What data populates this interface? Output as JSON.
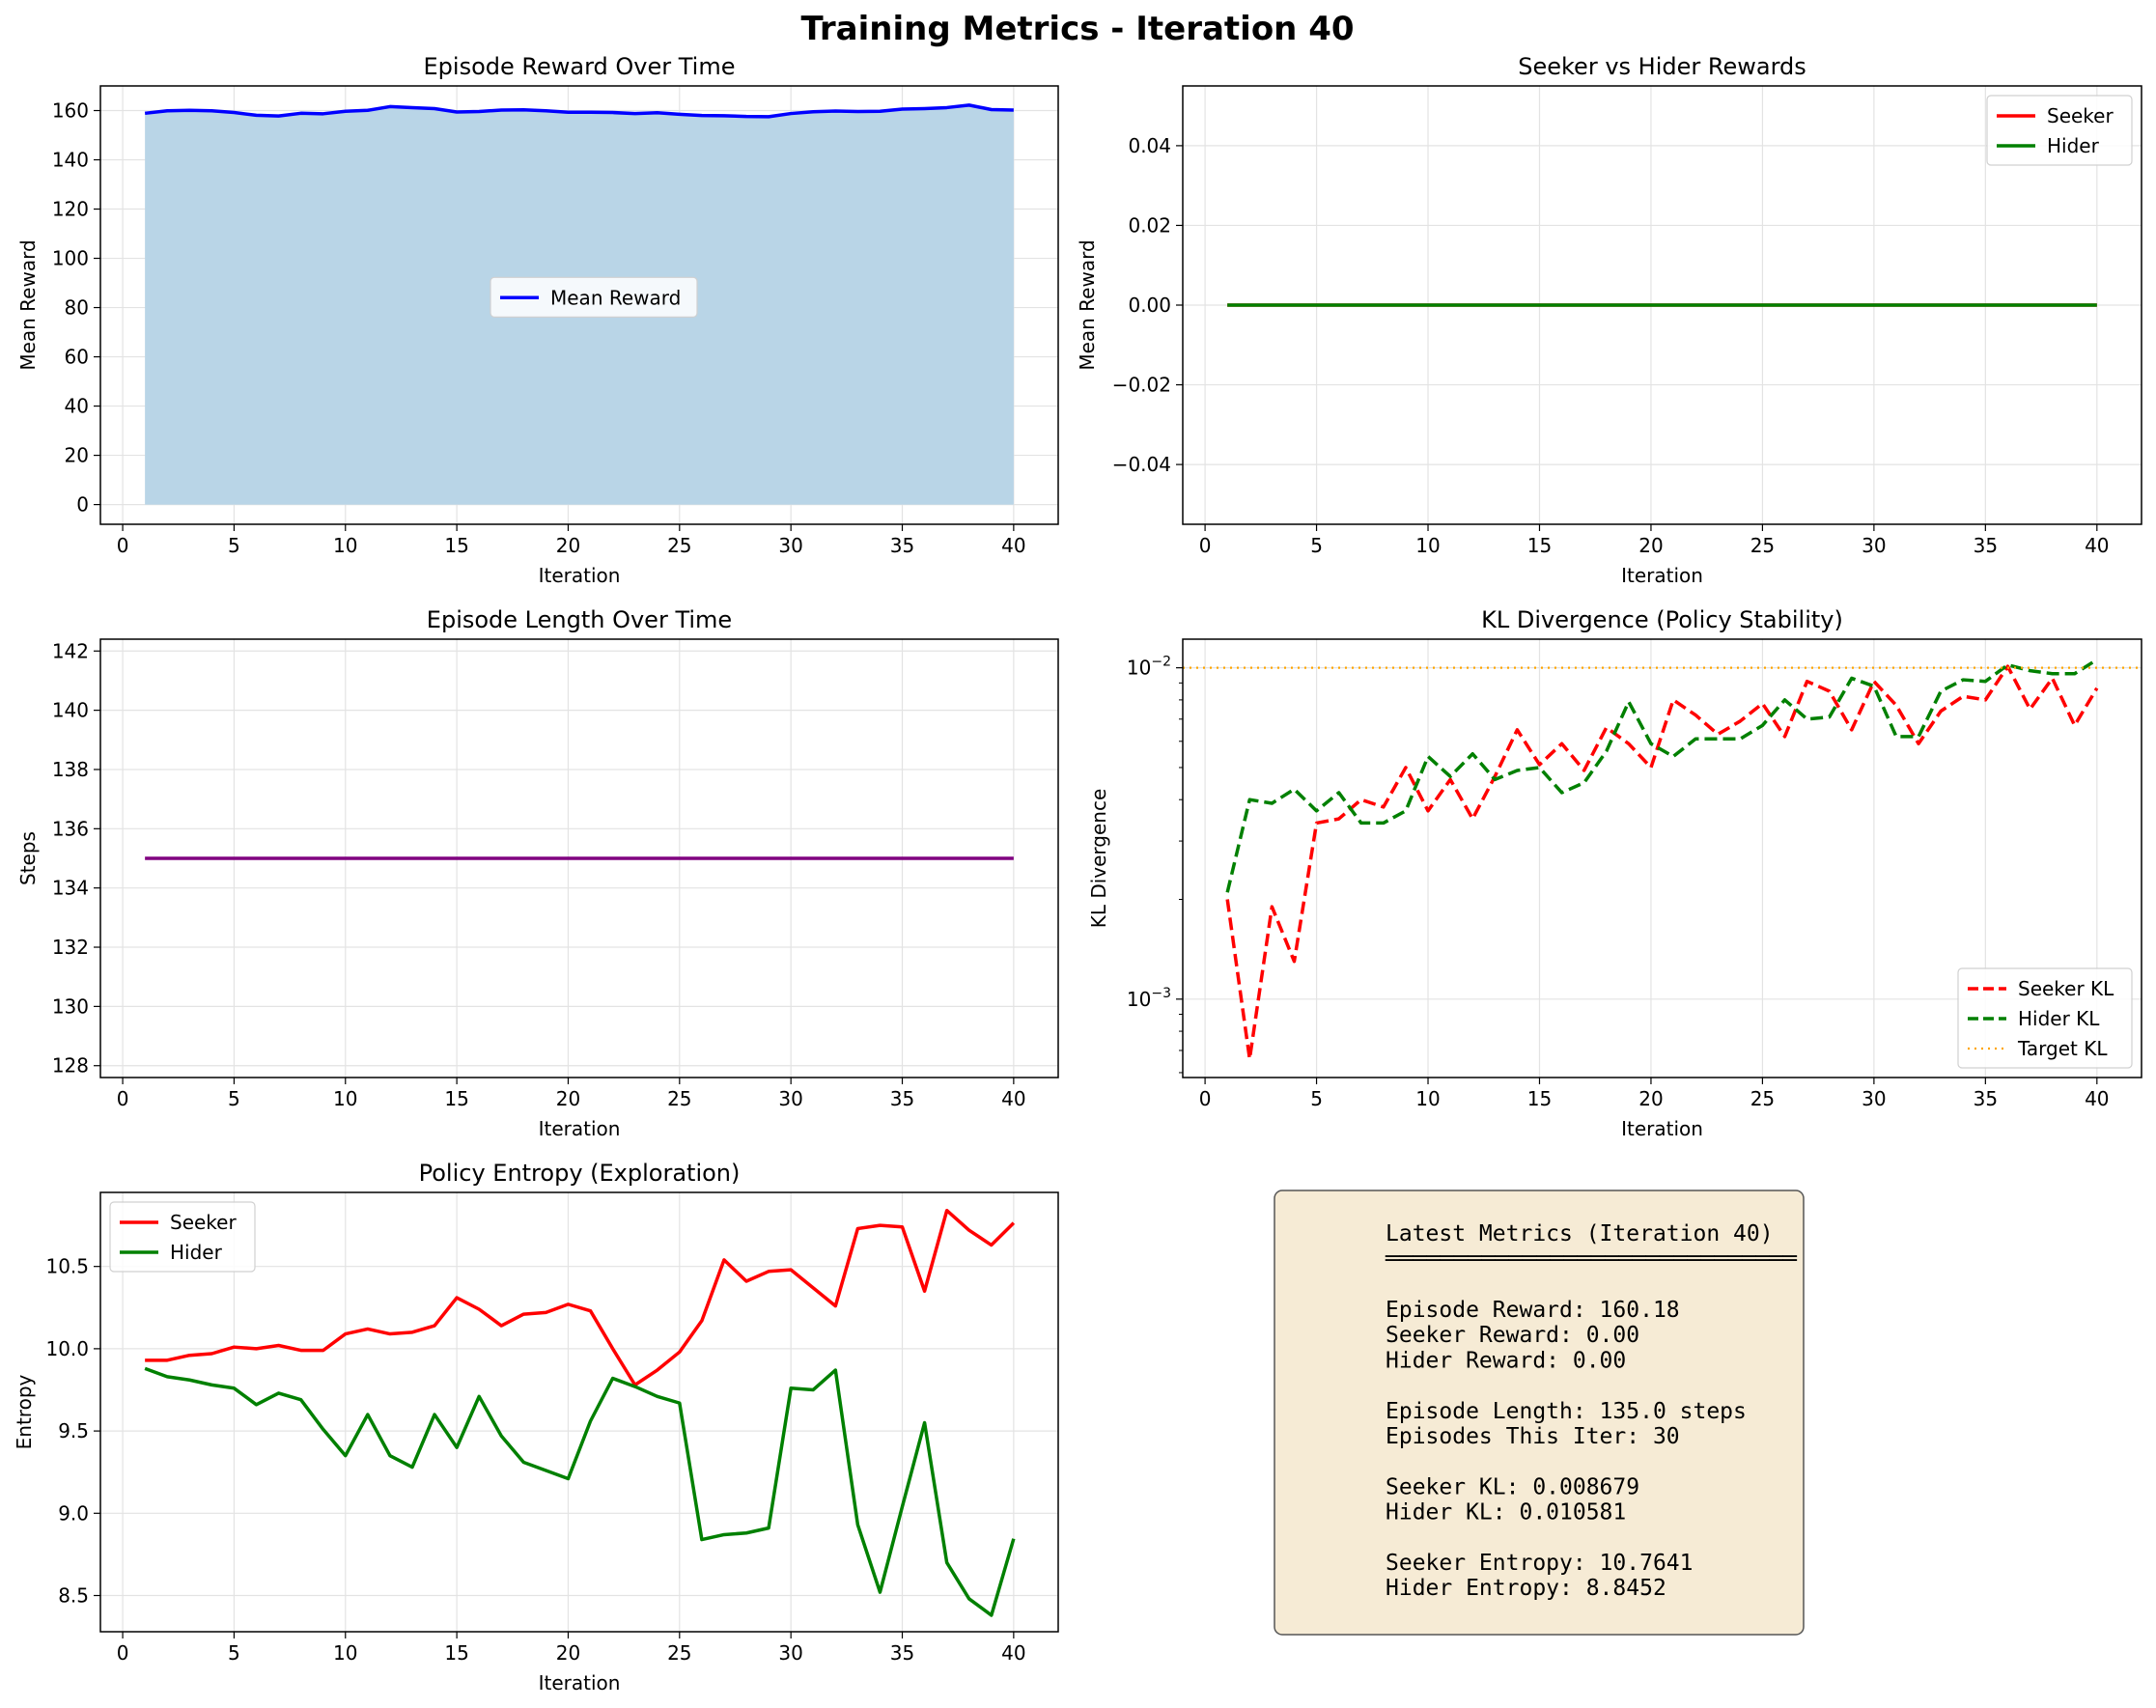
{
  "figure": {
    "title": "Training Metrics - Iteration 40"
  },
  "chart_data": [
    {
      "type": "area",
      "title": "Episode Reward Over Time",
      "xlabel": "Iteration",
      "ylabel": "Mean Reward",
      "xlim": [
        -1,
        42
      ],
      "ylim": [
        -8,
        170
      ],
      "xticks": [
        0,
        5,
        10,
        15,
        20,
        25,
        30,
        35,
        40
      ],
      "yticks": [
        0,
        20,
        40,
        60,
        80,
        100,
        120,
        140,
        160
      ],
      "legend_position": "center",
      "grid": true,
      "x": [
        1,
        2,
        3,
        4,
        5,
        6,
        7,
        8,
        9,
        10,
        11,
        12,
        13,
        14,
        15,
        16,
        17,
        18,
        19,
        20,
        21,
        22,
        23,
        24,
        25,
        26,
        27,
        28,
        29,
        30,
        31,
        32,
        33,
        34,
        35,
        36,
        37,
        38,
        39,
        40
      ],
      "series": [
        {
          "name": "Mean Reward",
          "color": "#0000ff",
          "fill": "#b9d5e7",
          "values": [
            158.9,
            159.9,
            160.1,
            159.9,
            159.2,
            158.1,
            157.8,
            158.9,
            158.7,
            159.7,
            160.1,
            161.6,
            161.2,
            160.8,
            159.4,
            159.6,
            160.2,
            160.3,
            159.9,
            159.3,
            159.3,
            159.2,
            158.8,
            159.1,
            158.5,
            158.0,
            157.9,
            157.6,
            157.5,
            158.8,
            159.5,
            159.8,
            159.6,
            159.7,
            160.6,
            160.8,
            161.2,
            162.2,
            160.4,
            160.18
          ]
        }
      ]
    },
    {
      "type": "line",
      "title": "Seeker vs Hider Rewards",
      "xlabel": "Iteration",
      "ylabel": "Mean Reward",
      "xlim": [
        -1,
        42
      ],
      "ylim": [
        -0.055,
        0.055
      ],
      "xticks": [
        0,
        5,
        10,
        15,
        20,
        25,
        30,
        35,
        40
      ],
      "yticks": [
        -0.04,
        -0.02,
        0.0,
        0.02,
        0.04
      ],
      "ytick_labels": [
        "−0.04",
        "−0.02",
        "0.00",
        "0.02",
        "0.04"
      ],
      "legend_position": "top-right",
      "grid": true,
      "x": [
        1,
        2,
        3,
        4,
        5,
        6,
        7,
        8,
        9,
        10,
        11,
        12,
        13,
        14,
        15,
        16,
        17,
        18,
        19,
        20,
        21,
        22,
        23,
        24,
        25,
        26,
        27,
        28,
        29,
        30,
        31,
        32,
        33,
        34,
        35,
        36,
        37,
        38,
        39,
        40
      ],
      "series": [
        {
          "name": "Seeker",
          "color": "#ff0000",
          "values": [
            0,
            0,
            0,
            0,
            0,
            0,
            0,
            0,
            0,
            0,
            0,
            0,
            0,
            0,
            0,
            0,
            0,
            0,
            0,
            0,
            0,
            0,
            0,
            0,
            0,
            0,
            0,
            0,
            0,
            0,
            0,
            0,
            0,
            0,
            0,
            0,
            0,
            0,
            0,
            0
          ]
        },
        {
          "name": "Hider",
          "color": "#008000",
          "values": [
            0,
            0,
            0,
            0,
            0,
            0,
            0,
            0,
            0,
            0,
            0,
            0,
            0,
            0,
            0,
            0,
            0,
            0,
            0,
            0,
            0,
            0,
            0,
            0,
            0,
            0,
            0,
            0,
            0,
            0,
            0,
            0,
            0,
            0,
            0,
            0,
            0,
            0,
            0,
            0
          ]
        }
      ]
    },
    {
      "type": "line",
      "title": "Episode Length Over Time",
      "xlabel": "Iteration",
      "ylabel": "Steps",
      "xlim": [
        -1,
        42
      ],
      "ylim": [
        127.6,
        142.4
      ],
      "xticks": [
        0,
        5,
        10,
        15,
        20,
        25,
        30,
        35,
        40
      ],
      "yticks": [
        128,
        130,
        132,
        134,
        136,
        138,
        140,
        142
      ],
      "legend_position": "none",
      "grid": true,
      "x": [
        1,
        2,
        3,
        4,
        5,
        6,
        7,
        8,
        9,
        10,
        11,
        12,
        13,
        14,
        15,
        16,
        17,
        18,
        19,
        20,
        21,
        22,
        23,
        24,
        25,
        26,
        27,
        28,
        29,
        30,
        31,
        32,
        33,
        34,
        35,
        36,
        37,
        38,
        39,
        40
      ],
      "series": [
        {
          "name": "Episode Length",
          "color": "#800080",
          "values": [
            135,
            135,
            135,
            135,
            135,
            135,
            135,
            135,
            135,
            135,
            135,
            135,
            135,
            135,
            135,
            135,
            135,
            135,
            135,
            135,
            135,
            135,
            135,
            135,
            135,
            135,
            135,
            135,
            135,
            135,
            135,
            135,
            135,
            135,
            135,
            135,
            135,
            135,
            135,
            135
          ]
        }
      ]
    },
    {
      "type": "line",
      "title": "KL Divergence (Policy Stability)",
      "xlabel": "Iteration",
      "ylabel": "KL Divergence",
      "yscale": "log",
      "xlim": [
        -1,
        42
      ],
      "ylim": [
        0.00058,
        0.0122
      ],
      "xticks": [
        0,
        5,
        10,
        15,
        20,
        25,
        30,
        35,
        40
      ],
      "legend_position": "bottom-right",
      "grid": true,
      "target_kl": 0.01,
      "x": [
        1,
        2,
        3,
        4,
        5,
        6,
        7,
        8,
        9,
        10,
        11,
        12,
        13,
        14,
        15,
        16,
        17,
        18,
        19,
        20,
        21,
        22,
        23,
        24,
        25,
        26,
        27,
        28,
        29,
        30,
        31,
        32,
        33,
        34,
        35,
        36,
        37,
        38,
        39,
        40
      ],
      "series": [
        {
          "name": "Seeker KL",
          "color": "#ff0000",
          "dash": "dashed",
          "values": [
            0.002,
            0.00066,
            0.0019,
            0.0013,
            0.0034,
            0.0035,
            0.004,
            0.0038,
            0.005,
            0.0037,
            0.0046,
            0.0035,
            0.0047,
            0.0065,
            0.0051,
            0.0059,
            0.0049,
            0.0066,
            0.0059,
            0.005,
            0.008,
            0.0072,
            0.0063,
            0.0069,
            0.0078,
            0.0062,
            0.0091,
            0.0085,
            0.0065,
            0.0091,
            0.0077,
            0.0059,
            0.0074,
            0.0082,
            0.008,
            0.0101,
            0.0075,
            0.0093,
            0.0067,
            0.008679
          ]
        },
        {
          "name": "Hider KL",
          "color": "#008000",
          "dash": "dashed",
          "values": [
            0.0021,
            0.004,
            0.0039,
            0.0043,
            0.0037,
            0.0042,
            0.0034,
            0.0034,
            0.0037,
            0.0054,
            0.0047,
            0.0055,
            0.0046,
            0.0049,
            0.005,
            0.0042,
            0.0045,
            0.0056,
            0.0079,
            0.0059,
            0.0054,
            0.0061,
            0.0061,
            0.0061,
            0.0067,
            0.008,
            0.007,
            0.0071,
            0.0093,
            0.0088,
            0.0062,
            0.0062,
            0.0085,
            0.0092,
            0.0091,
            0.0102,
            0.0098,
            0.0096,
            0.0096,
            0.010581
          ]
        },
        {
          "name": "Target KL",
          "color": "#ffa500",
          "dash": "dotted",
          "values": "constant 0.01"
        }
      ]
    },
    {
      "type": "line",
      "title": "Policy Entropy (Exploration)",
      "xlabel": "Iteration",
      "ylabel": "Entropy",
      "xlim": [
        -1,
        42
      ],
      "ylim": [
        8.28,
        10.95
      ],
      "xticks": [
        0,
        5,
        10,
        15,
        20,
        25,
        30,
        35,
        40
      ],
      "yticks": [
        8.5,
        9.0,
        9.5,
        10.0,
        10.5
      ],
      "legend_position": "top-left",
      "grid": true,
      "x": [
        1,
        2,
        3,
        4,
        5,
        6,
        7,
        8,
        9,
        10,
        11,
        12,
        13,
        14,
        15,
        16,
        17,
        18,
        19,
        20,
        21,
        22,
        23,
        24,
        25,
        26,
        27,
        28,
        29,
        30,
        31,
        32,
        33,
        34,
        35,
        36,
        37,
        38,
        39,
        40
      ],
      "series": [
        {
          "name": "Seeker",
          "color": "#ff0000",
          "values": [
            9.93,
            9.93,
            9.96,
            9.97,
            10.01,
            10.0,
            10.02,
            9.99,
            9.99,
            10.09,
            10.12,
            10.09,
            10.1,
            10.14,
            10.31,
            10.24,
            10.14,
            10.21,
            10.22,
            10.27,
            10.23,
            10.0,
            9.78,
            9.87,
            9.98,
            10.17,
            10.54,
            10.41,
            10.47,
            10.48,
            10.37,
            10.26,
            10.73,
            10.75,
            10.74,
            10.35,
            10.84,
            10.72,
            10.63,
            10.7641
          ]
        },
        {
          "name": "Hider",
          "color": "#008000",
          "values": [
            9.88,
            9.83,
            9.81,
            9.78,
            9.76,
            9.66,
            9.73,
            9.69,
            9.51,
            9.35,
            9.6,
            9.35,
            9.28,
            9.6,
            9.4,
            9.71,
            9.47,
            9.31,
            9.26,
            9.21,
            9.56,
            9.82,
            9.77,
            9.71,
            9.67,
            8.84,
            8.87,
            8.88,
            8.91,
            9.76,
            9.75,
            9.87,
            8.93,
            8.52,
            9.04,
            9.55,
            8.7,
            8.48,
            8.38,
            8.8452
          ]
        }
      ]
    }
  ],
  "summary": {
    "heading": "Latest Metrics (Iteration 40)",
    "rule": "══════════════════════════════",
    "lines": [
      "Episode Reward: 160.18",
      "Seeker Reward: 0.00",
      "Hider Reward: 0.00",
      "",
      "Episode Length: 135.0 steps",
      "Episodes This Iter: 30",
      "",
      "Seeker KL: 0.008679",
      "Hider KL: 0.010581",
      "",
      "Seeker Entropy: 10.7641",
      "Hider Entropy: 8.8452"
    ],
    "box_fill": "#f6ebd5",
    "box_edge": "#555555"
  }
}
